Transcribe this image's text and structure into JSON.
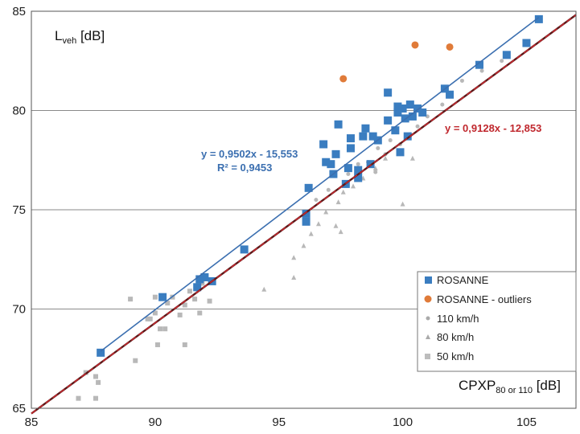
{
  "chart_data": {
    "type": "scatter",
    "title": "",
    "ylabel": {
      "main": "L",
      "sub": "veh",
      "unit": " [dB]"
    },
    "xlabel": {
      "main": "CPXP",
      "sub": "80 or 110",
      "unit": " [dB]"
    },
    "xlim": [
      85,
      107
    ],
    "ylim": [
      65,
      85
    ],
    "x_ticks": [
      "85",
      "90",
      "95",
      "100",
      "105"
    ],
    "y_ticks": [
      "65",
      "70",
      "75",
      "80",
      "85"
    ],
    "x_tick_values": [
      85,
      90,
      95,
      100,
      105
    ],
    "y_tick_values": [
      65,
      70,
      75,
      80,
      85
    ],
    "grid": "horizontal",
    "legend_position": "bottom-right",
    "colors": {
      "rosanne": "#3a7dc0",
      "outliers": "#e07b39",
      "kmh110": "#b8b8b8",
      "kmh80": "#b8b8b8",
      "kmh50": "#b8b8b8",
      "blue_fit": "#3b6fb0",
      "red_fit": "#c0282e"
    },
    "fits": [
      {
        "name": "blue_fit",
        "slope": 0.9502,
        "intercept": -15.553,
        "equation": "y = 0,9502x - 15,553",
        "r2": "R² = 0,9453",
        "x_range": [
          87.8,
          105.5
        ]
      },
      {
        "name": "red_fit",
        "slope": 0.9128,
        "intercept": -12.853,
        "equation": "y = 0,9128x - 12,853",
        "x_range": [
          85,
          107
        ]
      }
    ],
    "series": [
      {
        "name": "ROSANNE",
        "marker": "square",
        "points": [
          [
            87.8,
            67.8
          ],
          [
            90.3,
            70.6
          ],
          [
            91.7,
            71.1
          ],
          [
            91.8,
            71.5
          ],
          [
            92.0,
            71.6
          ],
          [
            92.3,
            71.4
          ],
          [
            93.6,
            73.0
          ],
          [
            96.1,
            74.4
          ],
          [
            96.1,
            74.8
          ],
          [
            96.2,
            76.1
          ],
          [
            96.8,
            78.3
          ],
          [
            96.9,
            77.4
          ],
          [
            97.1,
            77.3
          ],
          [
            97.2,
            76.8
          ],
          [
            97.3,
            77.8
          ],
          [
            97.4,
            79.3
          ],
          [
            97.7,
            76.3
          ],
          [
            97.8,
            77.1
          ],
          [
            97.9,
            78.1
          ],
          [
            97.9,
            78.6
          ],
          [
            98.2,
            76.6
          ],
          [
            98.2,
            77.0
          ],
          [
            98.4,
            78.7
          ],
          [
            98.5,
            79.1
          ],
          [
            98.7,
            77.3
          ],
          [
            98.8,
            78.7
          ],
          [
            99.0,
            78.5
          ],
          [
            99.4,
            79.5
          ],
          [
            99.4,
            80.9
          ],
          [
            99.7,
            79.0
          ],
          [
            99.8,
            79.9
          ],
          [
            99.8,
            80.2
          ],
          [
            99.9,
            77.9
          ],
          [
            100.0,
            80.1
          ],
          [
            100.1,
            79.6
          ],
          [
            100.2,
            78.7
          ],
          [
            100.3,
            80.3
          ],
          [
            100.4,
            79.7
          ],
          [
            100.6,
            80.1
          ],
          [
            100.8,
            79.9
          ],
          [
            101.7,
            81.1
          ],
          [
            101.9,
            80.8
          ],
          [
            103.1,
            82.3
          ],
          [
            104.2,
            82.8
          ],
          [
            105.0,
            83.4
          ],
          [
            105.5,
            84.6
          ]
        ]
      },
      {
        "name": "ROSANNE - outliers",
        "marker": "circle",
        "points": [
          [
            97.6,
            81.6
          ],
          [
            100.5,
            83.3
          ],
          [
            101.9,
            83.2
          ]
        ]
      },
      {
        "name": "110 km/h",
        "marker": "small-circle",
        "points": [
          [
            97.0,
            76.0
          ],
          [
            97.8,
            76.8
          ],
          [
            98.2,
            77.3
          ],
          [
            98.6,
            77.4
          ],
          [
            99.0,
            78.1
          ],
          [
            99.3,
            77.8
          ],
          [
            99.5,
            78.5
          ],
          [
            99.9,
            78.3
          ],
          [
            100.3,
            78.8
          ],
          [
            100.6,
            79.2
          ],
          [
            101.0,
            79.7
          ],
          [
            101.6,
            80.3
          ],
          [
            102.4,
            81.5
          ],
          [
            103.2,
            82.0
          ],
          [
            104.0,
            82.5
          ],
          [
            96.5,
            75.5
          ],
          [
            98.9,
            76.9
          ]
        ]
      },
      {
        "name": "80 km/h",
        "marker": "triangle",
        "points": [
          [
            94.4,
            71.0
          ],
          [
            95.6,
            71.6
          ],
          [
            95.6,
            72.6
          ],
          [
            96.0,
            73.2
          ],
          [
            96.6,
            74.3
          ],
          [
            96.9,
            74.9
          ],
          [
            97.3,
            74.2
          ],
          [
            97.4,
            75.4
          ],
          [
            97.6,
            75.9
          ],
          [
            98.0,
            76.2
          ],
          [
            98.4,
            76.6
          ],
          [
            98.9,
            77.1
          ],
          [
            99.3,
            77.6
          ],
          [
            100.0,
            75.3
          ],
          [
            100.4,
            77.6
          ],
          [
            97.5,
            73.9
          ],
          [
            96.3,
            73.8
          ]
        ]
      },
      {
        "name": "50 km/h",
        "marker": "gray-square",
        "points": [
          [
            86.9,
            65.5
          ],
          [
            87.2,
            66.8
          ],
          [
            87.6,
            65.5
          ],
          [
            87.6,
            66.6
          ],
          [
            87.7,
            66.3
          ],
          [
            89.0,
            70.5
          ],
          [
            89.2,
            67.4
          ],
          [
            89.7,
            69.5
          ],
          [
            90.0,
            69.8
          ],
          [
            90.1,
            68.2
          ],
          [
            90.2,
            69.0
          ],
          [
            90.4,
            69.0
          ],
          [
            90.5,
            70.3
          ],
          [
            90.7,
            70.6
          ],
          [
            91.0,
            69.7
          ],
          [
            91.2,
            70.2
          ],
          [
            91.4,
            70.9
          ],
          [
            91.6,
            70.5
          ],
          [
            91.8,
            69.8
          ],
          [
            91.2,
            68.2
          ],
          [
            91.9,
            71.3
          ],
          [
            92.2,
            70.4
          ],
          [
            90.0,
            70.6
          ],
          [
            89.8,
            69.5
          ]
        ]
      }
    ],
    "legend": [
      "ROSANNE",
      "ROSANNE - outliers",
      "110 km/h",
      "80 km/h",
      "50 km/h"
    ]
  }
}
